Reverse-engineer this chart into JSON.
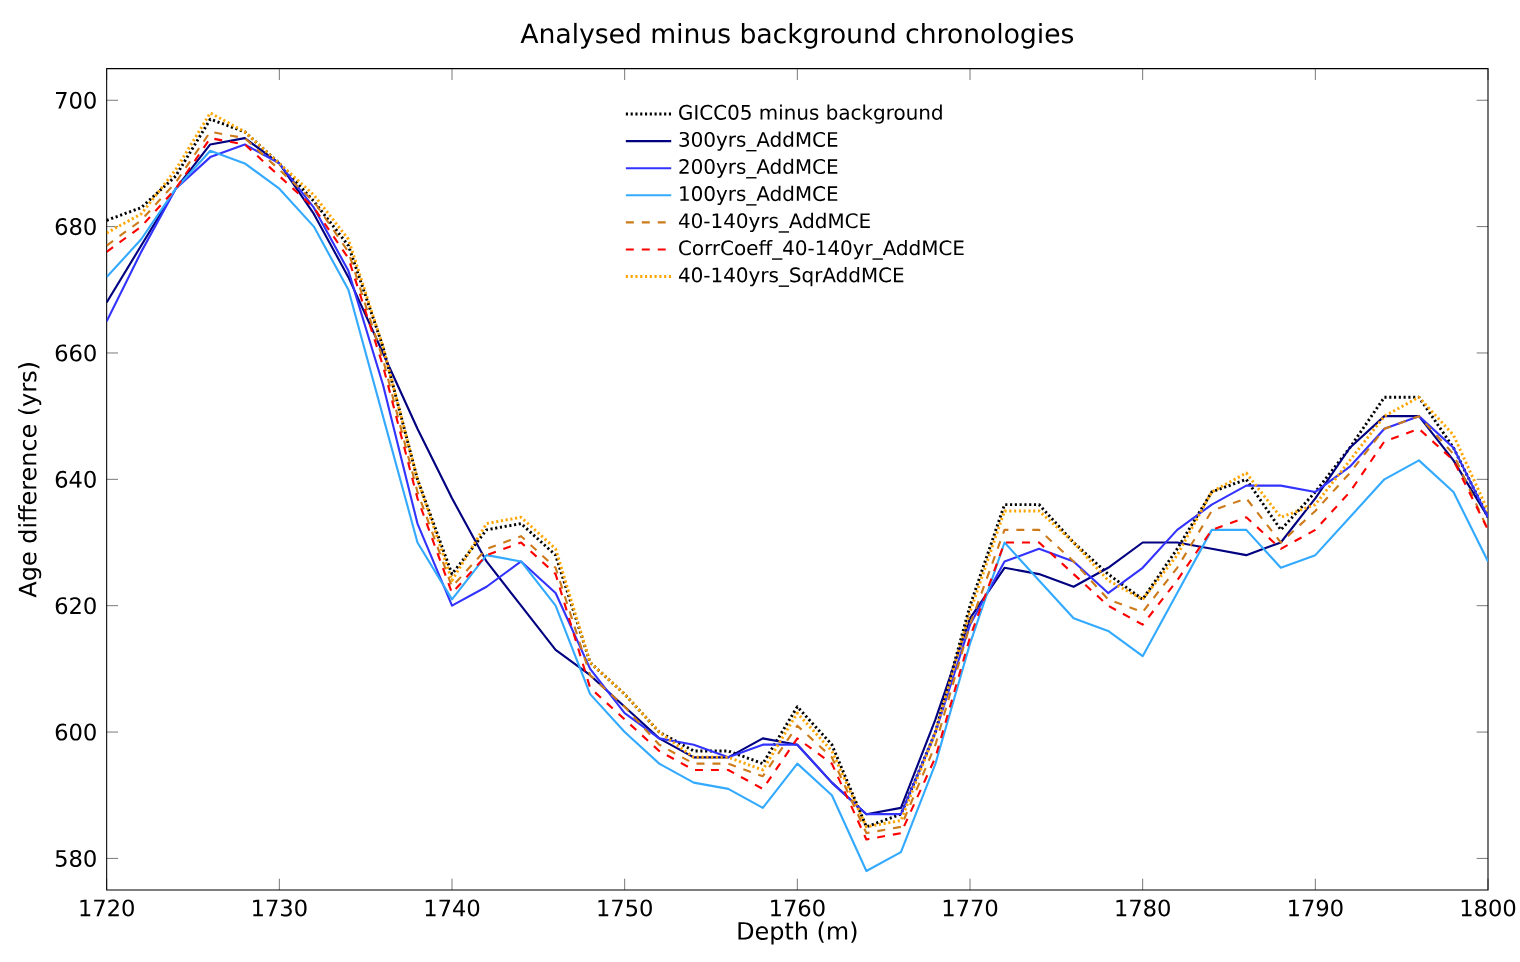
{
  "chart_data": {
    "type": "line",
    "title": "Analysed minus background chronologies",
    "xlabel": "Depth (m)",
    "ylabel": "Age difference (yrs)",
    "x": [
      1720,
      1722,
      1724,
      1726,
      1728,
      1730,
      1732,
      1734,
      1736,
      1738,
      1740,
      1742,
      1744,
      1746,
      1748,
      1750,
      1752,
      1754,
      1756,
      1758,
      1760,
      1762,
      1764,
      1766,
      1768,
      1770,
      1772,
      1774,
      1776,
      1778,
      1780,
      1782,
      1784,
      1786,
      1788,
      1790,
      1792,
      1794,
      1796,
      1798,
      1800
    ],
    "xlim": [
      1720,
      1800
    ],
    "xticks": [
      1720,
      1730,
      1740,
      1750,
      1760,
      1770,
      1780,
      1790,
      1800
    ],
    "ylim": [
      575,
      705
    ],
    "yticks": [
      580,
      600,
      620,
      640,
      660,
      680,
      700
    ],
    "grid": false,
    "legend": "top",
    "marker": "none",
    "series": [
      {
        "name": "GICC05 minus background",
        "color": "#000000",
        "line_style": "dotted",
        "values": [
          681,
          683,
          688,
          697,
          695,
          690,
          684,
          677,
          661,
          640,
          625,
          632,
          633,
          628,
          611,
          606,
          600,
          597,
          597,
          595,
          604,
          598,
          585,
          587,
          600,
          620,
          636,
          636,
          630,
          625,
          621,
          629,
          638,
          640,
          632,
          638,
          645,
          653,
          653,
          645,
          634
        ]
      },
      {
        "name": "300yrs_AddMCE",
        "color": "#000080",
        "line_style": "solid",
        "values": [
          668,
          677,
          686,
          693,
          694,
          690,
          682,
          672,
          660,
          648,
          637,
          627,
          620,
          613,
          609,
          604,
          599,
          596,
          596,
          599,
          598,
          592,
          587,
          588,
          602,
          618,
          626,
          625,
          623,
          626,
          630,
          630,
          629,
          628,
          630,
          637,
          645,
          650,
          650,
          643,
          634
        ]
      },
      {
        "name": "200yrs_AddMCE",
        "color": "#3333ff",
        "line_style": "solid",
        "values": [
          665,
          676,
          686,
          691,
          693,
          690,
          683,
          673,
          655,
          633,
          620,
          623,
          627,
          622,
          610,
          603,
          599,
          598,
          596,
          598,
          598,
          592,
          587,
          587,
          600,
          617,
          627,
          629,
          627,
          622,
          626,
          632,
          636,
          639,
          639,
          638,
          642,
          648,
          650,
          645,
          634
        ]
      },
      {
        "name": "100yrs_AddMCE",
        "color": "#33aaff",
        "line_style": "solid",
        "values": [
          672,
          678,
          686,
          692,
          690,
          686,
          680,
          670,
          650,
          630,
          621,
          628,
          627,
          620,
          606,
          600,
          595,
          592,
          591,
          588,
          595,
          590,
          578,
          581,
          595,
          614,
          630,
          624,
          618,
          616,
          612,
          622,
          632,
          632,
          626,
          628,
          634,
          640,
          643,
          638,
          627
        ]
      },
      {
        "name": "40-140yrs_AddMCE",
        "color": "#cc7a1a",
        "line_style": "dashed",
        "values": [
          677,
          681,
          687,
          695,
          694,
          689,
          684,
          676,
          659,
          638,
          623,
          629,
          631,
          626,
          609,
          604,
          598,
          595,
          595,
          593,
          601,
          596,
          584,
          585,
          598,
          617,
          632,
          632,
          627,
          621,
          619,
          626,
          635,
          637,
          630,
          635,
          641,
          648,
          650,
          644,
          632
        ]
      },
      {
        "name": "CorrCoeff_40-140yr_AddMCE",
        "color": "#ff0000",
        "line_style": "dashed",
        "values": [
          676,
          680,
          686,
          694,
          693,
          688,
          683,
          675,
          658,
          637,
          622,
          628,
          630,
          625,
          607,
          602,
          597,
          594,
          594,
          591,
          599,
          595,
          583,
          584,
          596,
          615,
          630,
          630,
          625,
          620,
          617,
          624,
          632,
          634,
          629,
          632,
          638,
          646,
          648,
          643,
          632
        ]
      },
      {
        "name": "40-140yrs_SqrAddMCE",
        "color": "#ffa500",
        "line_style": "dotted",
        "values": [
          679,
          682,
          689,
          698,
          695,
          690,
          685,
          678,
          661,
          640,
          624,
          633,
          634,
          629,
          611,
          606,
          600,
          596,
          596,
          594,
          603,
          597,
          585,
          586,
          600,
          619,
          635,
          635,
          630,
          624,
          621,
          628,
          638,
          641,
          634,
          636,
          643,
          650,
          653,
          647,
          635
        ]
      }
    ]
  }
}
